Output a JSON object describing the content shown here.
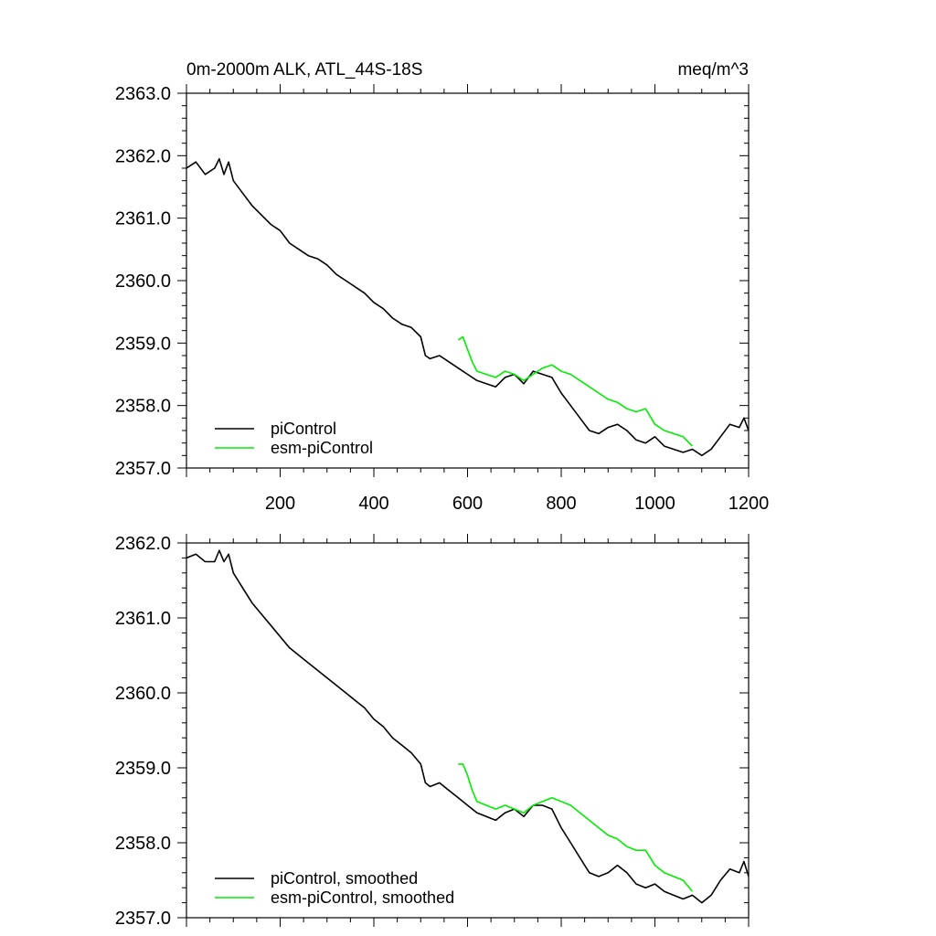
{
  "chart_data": [
    {
      "type": "line",
      "title": "0m-2000m ALK, ATL_44S-18S",
      "units": "meq/m^3",
      "xlim": [
        0,
        1200
      ],
      "ylim": [
        2357.0,
        2363.0
      ],
      "x_ticks": [
        200,
        400,
        600,
        800,
        1000,
        1200
      ],
      "y_ticks": [
        "2357.0",
        "2358.0",
        "2359.0",
        "2360.0",
        "2361.0",
        "2362.0",
        "2363.0"
      ],
      "legend_position": "bottom-left",
      "series": [
        {
          "name": "piControl",
          "color": "#000000",
          "x": [
            0,
            20,
            40,
            60,
            70,
            80,
            90,
            100,
            120,
            140,
            160,
            180,
            200,
            220,
            240,
            260,
            280,
            300,
            320,
            340,
            360,
            380,
            400,
            420,
            440,
            460,
            480,
            500,
            510,
            520,
            540,
            560,
            580,
            600,
            620,
            640,
            660,
            680,
            700,
            720,
            740,
            760,
            780,
            800,
            820,
            840,
            860,
            880,
            900,
            920,
            940,
            960,
            980,
            1000,
            1020,
            1040,
            1060,
            1080,
            1100,
            1120,
            1140,
            1160,
            1180,
            1190,
            1200
          ],
          "y": [
            2361.8,
            2361.9,
            2361.7,
            2361.8,
            2361.95,
            2361.7,
            2361.9,
            2361.6,
            2361.4,
            2361.2,
            2361.05,
            2360.9,
            2360.8,
            2360.6,
            2360.5,
            2360.4,
            2360.35,
            2360.25,
            2360.1,
            2360.0,
            2359.9,
            2359.8,
            2359.65,
            2359.55,
            2359.4,
            2359.3,
            2359.25,
            2359.1,
            2358.8,
            2358.75,
            2358.8,
            2358.7,
            2358.6,
            2358.5,
            2358.4,
            2358.35,
            2358.3,
            2358.45,
            2358.5,
            2358.35,
            2358.55,
            2358.5,
            2358.45,
            2358.2,
            2358.0,
            2357.8,
            2357.6,
            2357.55,
            2357.65,
            2357.7,
            2357.6,
            2357.45,
            2357.4,
            2357.5,
            2357.35,
            2357.3,
            2357.25,
            2357.3,
            2357.2,
            2357.3,
            2357.5,
            2357.7,
            2357.65,
            2357.8,
            2357.6
          ]
        },
        {
          "name": "esm-piControl",
          "color": "#00ee00",
          "x": [
            580,
            590,
            600,
            610,
            620,
            640,
            660,
            680,
            700,
            720,
            740,
            760,
            780,
            800,
            820,
            840,
            860,
            880,
            900,
            920,
            940,
            960,
            980,
            1000,
            1020,
            1040,
            1060,
            1080
          ],
          "y": [
            2359.05,
            2359.1,
            2358.9,
            2358.7,
            2358.55,
            2358.5,
            2358.45,
            2358.55,
            2358.5,
            2358.4,
            2358.5,
            2358.6,
            2358.65,
            2358.55,
            2358.5,
            2358.4,
            2358.3,
            2358.2,
            2358.1,
            2358.05,
            2357.95,
            2357.9,
            2357.95,
            2357.7,
            2357.6,
            2357.55,
            2357.5,
            2357.35
          ]
        }
      ]
    },
    {
      "type": "line",
      "xlim": [
        0,
        1200
      ],
      "ylim": [
        2357.0,
        2362.0
      ],
      "y_ticks": [
        "2357.0",
        "2358.0",
        "2359.0",
        "2360.0",
        "2361.0",
        "2362.0"
      ],
      "legend_position": "bottom-left",
      "series": [
        {
          "name": "piControl, smoothed",
          "color": "#000000",
          "x": [
            0,
            20,
            40,
            60,
            70,
            80,
            90,
            100,
            120,
            140,
            160,
            180,
            200,
            220,
            240,
            260,
            280,
            300,
            320,
            340,
            360,
            380,
            400,
            420,
            440,
            460,
            480,
            500,
            510,
            520,
            540,
            560,
            580,
            600,
            620,
            640,
            660,
            680,
            700,
            720,
            740,
            760,
            780,
            800,
            820,
            840,
            860,
            880,
            900,
            920,
            940,
            960,
            980,
            1000,
            1020,
            1040,
            1060,
            1080,
            1100,
            1120,
            1140,
            1160,
            1180,
            1190,
            1200
          ],
          "y": [
            2361.8,
            2361.85,
            2361.75,
            2361.75,
            2361.9,
            2361.75,
            2361.85,
            2361.6,
            2361.4,
            2361.2,
            2361.05,
            2360.9,
            2360.75,
            2360.6,
            2360.5,
            2360.4,
            2360.3,
            2360.2,
            2360.1,
            2360.0,
            2359.9,
            2359.8,
            2359.65,
            2359.55,
            2359.4,
            2359.3,
            2359.2,
            2359.05,
            2358.8,
            2358.75,
            2358.8,
            2358.7,
            2358.6,
            2358.5,
            2358.4,
            2358.35,
            2358.3,
            2358.4,
            2358.45,
            2358.35,
            2358.5,
            2358.5,
            2358.45,
            2358.2,
            2358.0,
            2357.8,
            2357.6,
            2357.55,
            2357.6,
            2357.7,
            2357.6,
            2357.45,
            2357.4,
            2357.45,
            2357.35,
            2357.3,
            2357.25,
            2357.3,
            2357.2,
            2357.3,
            2357.5,
            2357.65,
            2357.6,
            2357.75,
            2357.55
          ]
        },
        {
          "name": "esm-piControl, smoothed",
          "color": "#00ee00",
          "x": [
            580,
            590,
            600,
            610,
            620,
            640,
            660,
            680,
            700,
            720,
            740,
            760,
            780,
            800,
            820,
            840,
            860,
            880,
            900,
            920,
            940,
            960,
            980,
            1000,
            1020,
            1040,
            1060,
            1080
          ],
          "y": [
            2359.05,
            2359.05,
            2358.9,
            2358.7,
            2358.55,
            2358.5,
            2358.45,
            2358.5,
            2358.45,
            2358.4,
            2358.5,
            2358.55,
            2358.6,
            2358.55,
            2358.5,
            2358.4,
            2358.3,
            2358.2,
            2358.1,
            2358.05,
            2357.95,
            2357.9,
            2357.9,
            2357.7,
            2357.6,
            2357.55,
            2357.5,
            2357.35
          ]
        }
      ]
    }
  ]
}
